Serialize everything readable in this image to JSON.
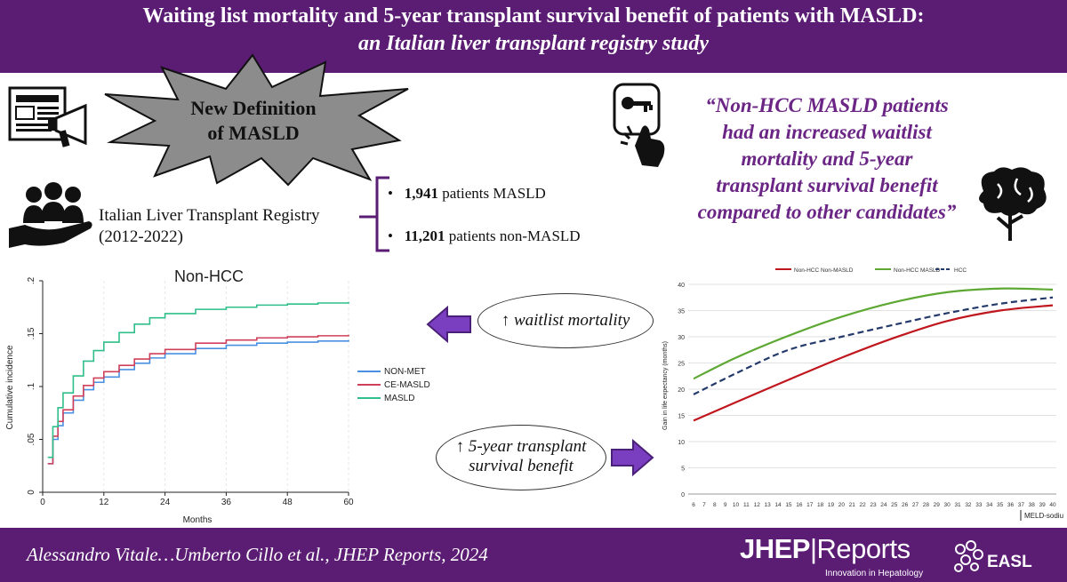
{
  "header": {
    "title_line1": "Waiting list mortality and 5-year transplant survival benefit of patients with MASLD:",
    "title_line2": "an Italian liver transplant registry study"
  },
  "starburst": {
    "line1": "New Definition",
    "line2": "of MASLD"
  },
  "registry": {
    "line1": "Italian Liver Transplant Registry",
    "line2": "(2012-2022)"
  },
  "bullets": [
    {
      "count": "1,941",
      "text": " patients MASLD"
    },
    {
      "count": "11,201",
      "text": " patients non-MASLD"
    }
  ],
  "quote": {
    "lines": [
      "“Non-HCC MASLD patients",
      "had an increased waitlist",
      "mortality and 5-year",
      "transplant survival benefit",
      "compared to other candidates”"
    ]
  },
  "ovals": {
    "mortality": "↑ waitlist mortality",
    "benefit_line1": "↑ 5-year transplant",
    "benefit_line2": "survival benefit"
  },
  "colors": {
    "brand_purple": "#5b1c74",
    "quote_purple": "#6a2585",
    "arrow_purple": "#7a3fc0"
  },
  "icons": [
    "newspaper-megaphone-icon",
    "key-click-icon",
    "people-hand-icon",
    "brain-tree-icon"
  ],
  "chart_data": [
    {
      "type": "line",
      "title": "Non-HCC",
      "xlabel": "Months",
      "ylabel": "Cumulative incidence",
      "x_ticks": [
        "0",
        "12",
        "24",
        "36",
        "48",
        "60"
      ],
      "y_ticks": [
        "0",
        ".05",
        ".1",
        ".15",
        ".2"
      ],
      "xlim": [
        0,
        60
      ],
      "ylim": [
        0,
        0.2
      ],
      "legend_position": "right",
      "series": [
        {
          "name": "NON-MET",
          "color": "#4a90e2",
          "x": [
            1,
            2,
            3,
            4,
            6,
            8,
            10,
            12,
            15,
            18,
            21,
            24,
            30,
            36,
            42,
            48,
            54,
            60
          ],
          "y": [
            0.027,
            0.05,
            0.063,
            0.075,
            0.087,
            0.097,
            0.104,
            0.109,
            0.116,
            0.122,
            0.127,
            0.131,
            0.136,
            0.139,
            0.141,
            0.142,
            0.143,
            0.144
          ]
        },
        {
          "name": "CE-MASLD",
          "color": "#d0405a",
          "x": [
            1,
            2,
            3,
            4,
            6,
            8,
            10,
            12,
            15,
            18,
            21,
            24,
            30,
            36,
            42,
            48,
            54,
            60
          ],
          "y": [
            0.027,
            0.053,
            0.067,
            0.078,
            0.091,
            0.101,
            0.108,
            0.114,
            0.12,
            0.126,
            0.131,
            0.135,
            0.141,
            0.144,
            0.146,
            0.147,
            0.148,
            0.149
          ]
        },
        {
          "name": "MASLD",
          "color": "#2fbf8a",
          "x": [
            1,
            2,
            3,
            4,
            6,
            8,
            10,
            12,
            15,
            18,
            21,
            24,
            30,
            36,
            42,
            48,
            54,
            60
          ],
          "y": [
            0.033,
            0.062,
            0.08,
            0.094,
            0.11,
            0.124,
            0.134,
            0.142,
            0.151,
            0.159,
            0.165,
            0.169,
            0.173,
            0.175,
            0.177,
            0.178,
            0.179,
            0.18
          ]
        }
      ]
    },
    {
      "type": "line",
      "title": "",
      "xlabel": "MELD-sodium",
      "ylabel": "Gain in life expectancy (months)",
      "x_ticks": [
        "6",
        "7",
        "8",
        "9",
        "10",
        "11",
        "12",
        "13",
        "14",
        "15",
        "16",
        "17",
        "18",
        "19",
        "20",
        "21",
        "22",
        "23",
        "24",
        "25",
        "26",
        "27",
        "28",
        "29",
        "30",
        "31",
        "32",
        "33",
        "34",
        "35",
        "36",
        "37",
        "38",
        "39",
        "40"
      ],
      "y_ticks": [
        "0",
        "5",
        "10",
        "15",
        "20",
        "25",
        "30",
        "35",
        "40"
      ],
      "xlim": [
        6,
        40
      ],
      "ylim": [
        0,
        40
      ],
      "legend_position": "top",
      "series": [
        {
          "name": "Non-HCC  Non-MASLD",
          "color": "#c0161e",
          "style": "solid",
          "x": [
            6,
            10,
            15,
            20,
            25,
            30,
            35,
            40
          ],
          "y": [
            14,
            17.5,
            21.8,
            26,
            29.8,
            33,
            35,
            36
          ]
        },
        {
          "name": "Non-HCC MASLD",
          "color": "#5da832",
          "style": "solid",
          "x": [
            6,
            10,
            15,
            20,
            25,
            30,
            35,
            40
          ],
          "y": [
            22,
            26,
            30.2,
            33.8,
            36.6,
            38.5,
            39.2,
            39
          ]
        },
        {
          "name": "HCC",
          "color": "#243a6b",
          "style": "dashed",
          "x": [
            6,
            10,
            15,
            20,
            25,
            30,
            35,
            40
          ],
          "y": [
            19,
            23,
            27.5,
            30,
            32.3,
            34.5,
            36.3,
            37.5
          ]
        }
      ]
    }
  ],
  "footer": {
    "citation": "Alessandro Vitale…Umberto Cillo et al., JHEP Reports, 2024",
    "journal_bold": "JHEP",
    "journal_thin": "Reports",
    "journal_sub": "Innovation in Hepatology",
    "society": "EASL"
  }
}
